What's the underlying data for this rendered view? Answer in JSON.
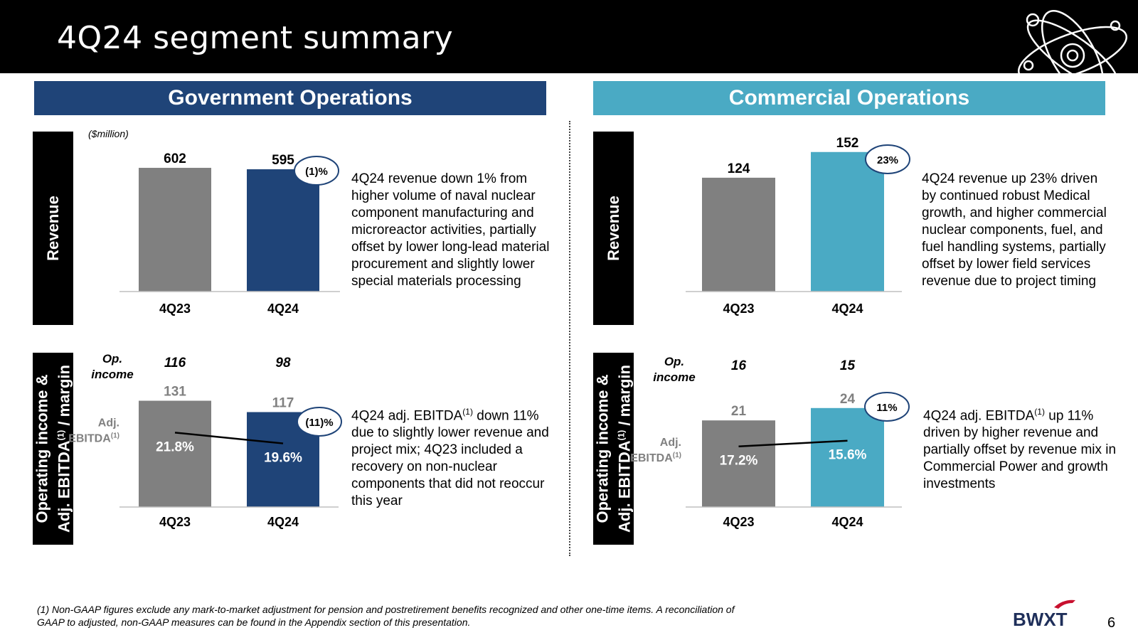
{
  "title": "4Q24 segment summary",
  "unit_note": "($million)",
  "gov": {
    "header": "Government Operations",
    "side_revenue": "Revenue",
    "side_op_line1": "Operating income &",
    "side_op_line2": "Adj. EBITDA",
    "side_op_line2_tail": " / margin",
    "sup": "(1)",
    "revenue_desc": "4Q24 revenue down 1% from higher volume of naval nuclear component manufacturing and microreactor activities, partially offset by lower long-lead material procurement and slightly lower special materials processing",
    "ebitda_desc_a": "4Q24 adj. EBITDA",
    "ebitda_desc_b": " down 11% due to slightly lower revenue and project mix; 4Q23 included a recovery on non-nuclear components that did not reoccur this year"
  },
  "com": {
    "header": "Commercial Operations",
    "side_revenue": "Revenue",
    "side_op_line1": "Operating income &",
    "side_op_line2": "Adj. EBITDA",
    "side_op_line2_tail": " / margin",
    "sup": "(1)",
    "revenue_desc": "4Q24 revenue up 23% driven by continued robust Medical growth, and higher commercial nuclear components, fuel, and fuel handling systems, partially offset by lower field services revenue due to project timing",
    "ebitda_desc_a": "4Q24 adj. EBITDA",
    "ebitda_desc_b": " up 11% driven by higher revenue and partially offset by revenue mix in Commercial Power and growth investments"
  },
  "chart_data": [
    {
      "id": "gov-revenue",
      "type": "bar",
      "categories": [
        "4Q23",
        "4Q24"
      ],
      "values": [
        602,
        595
      ],
      "colors": [
        "#808080",
        "#1f4478"
      ],
      "change_label": "(1)%"
    },
    {
      "id": "gov-ebitda",
      "type": "bar",
      "categories": [
        "4Q23",
        "4Q24"
      ],
      "values": [
        131,
        117
      ],
      "margins": [
        "21.8%",
        "19.6%"
      ],
      "op_income": [
        116,
        98
      ],
      "op_income_label": "Op. income",
      "ebitda_label": "Adj. EBITDA",
      "sup": "(1)",
      "colors": [
        "#808080",
        "#1f4478"
      ],
      "change_label": "(11)%"
    },
    {
      "id": "com-revenue",
      "type": "bar",
      "categories": [
        "4Q23",
        "4Q24"
      ],
      "values": [
        124,
        152
      ],
      "colors": [
        "#808080",
        "#4aaac4"
      ],
      "change_label": "23%"
    },
    {
      "id": "com-ebitda",
      "type": "bar",
      "categories": [
        "4Q23",
        "4Q24"
      ],
      "values": [
        21,
        24
      ],
      "margins": [
        "17.2%",
        "15.6%"
      ],
      "op_income": [
        16,
        15
      ],
      "op_income_label": "Op. income",
      "ebitda_label": "Adj. EBITDA",
      "sup": "(1)",
      "colors": [
        "#808080",
        "#4aaac4"
      ],
      "change_label": "11%"
    }
  ],
  "footnote_line1": "(1) Non-GAAP figures exclude any mark-to-market adjustment for pension and postretirement benefits recognized and other one-time items.  A reconciliation of",
  "footnote_line2": "GAAP to adjusted, non-GAAP measures can be found in the Appendix section of this presentation.",
  "logo_text": "BWXT",
  "page_number": "6"
}
